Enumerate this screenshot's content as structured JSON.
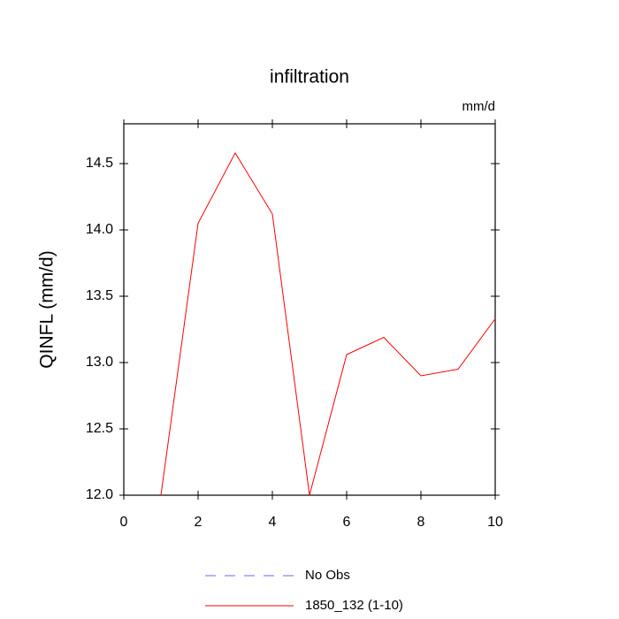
{
  "chart_data": {
    "type": "line",
    "title": "infiltration",
    "units": "mm/d",
    "y_label": "QINFL  (mm/d)",
    "x": [
      1,
      2,
      3,
      4,
      5,
      6,
      7,
      8,
      9,
      10
    ],
    "series": [
      {
        "name": "No Obs",
        "color": "#6666ff",
        "dashed": true,
        "values": [
          null,
          null,
          null,
          null,
          null,
          null,
          null,
          null,
          null,
          null
        ]
      },
      {
        "name": "1850_132 (1-10)",
        "color": "#ff0000",
        "values": [
          12.0,
          14.05,
          14.58,
          14.12,
          12.0,
          13.06,
          13.19,
          12.9,
          12.95,
          13.33
        ]
      }
    ],
    "xlim": [
      0,
      10
    ],
    "xticks": [
      0,
      2,
      4,
      6,
      8,
      10
    ],
    "ylim": [
      12,
      14.8
    ],
    "yticks": [
      {
        "value": 12,
        "label": "12.0"
      },
      12.5,
      {
        "value": 13,
        "label": "13.0"
      },
      13.5,
      {
        "value": 14,
        "label": "14.0"
      },
      14.5
    ]
  }
}
